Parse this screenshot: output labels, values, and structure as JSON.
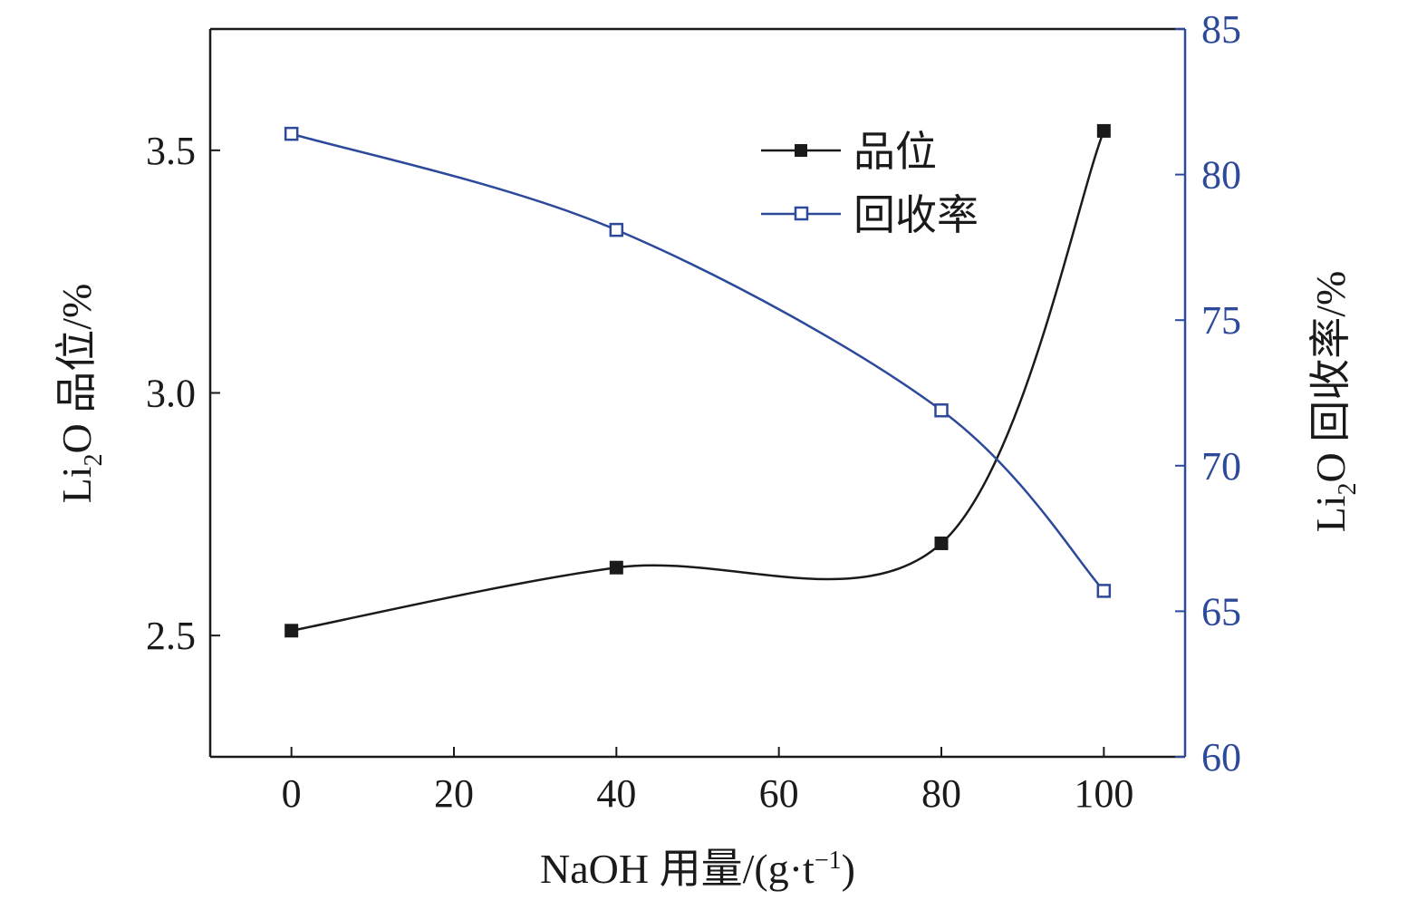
{
  "chart_data": {
    "type": "line",
    "x": [
      0,
      40,
      80,
      100
    ],
    "xticks": [
      "0",
      "20",
      "40",
      "60",
      "80",
      "100"
    ],
    "xlim": [
      -10,
      110
    ],
    "xlabel": {
      "prefix": "NaOH 用量/(g·t",
      "sup": "−1",
      "suffix": ")"
    },
    "y_left": {
      "label": {
        "a": "Li",
        "sub": "2",
        "b": "O 品位/%"
      },
      "lim": [
        2.25,
        3.75
      ],
      "ticks": [
        "2.5",
        "3.0",
        "3.5"
      ]
    },
    "y_right": {
      "label": {
        "a": "Li",
        "sub": "2",
        "b": "O 回收率/%"
      },
      "lim": [
        60,
        85
      ],
      "ticks": [
        "60",
        "65",
        "70",
        "75",
        "80",
        "85"
      ]
    },
    "series": [
      {
        "name": "品位",
        "axis": "left",
        "marker": "filled-square",
        "color": "#1a1a1a",
        "values": [
          2.51,
          2.64,
          2.69,
          3.54
        ]
      },
      {
        "name": "回收率",
        "axis": "right",
        "marker": "open-square",
        "color": "#2d4a9a",
        "values": [
          81.4,
          78.1,
          71.9,
          65.7
        ]
      }
    ],
    "legend": "top-right",
    "grid": false
  }
}
